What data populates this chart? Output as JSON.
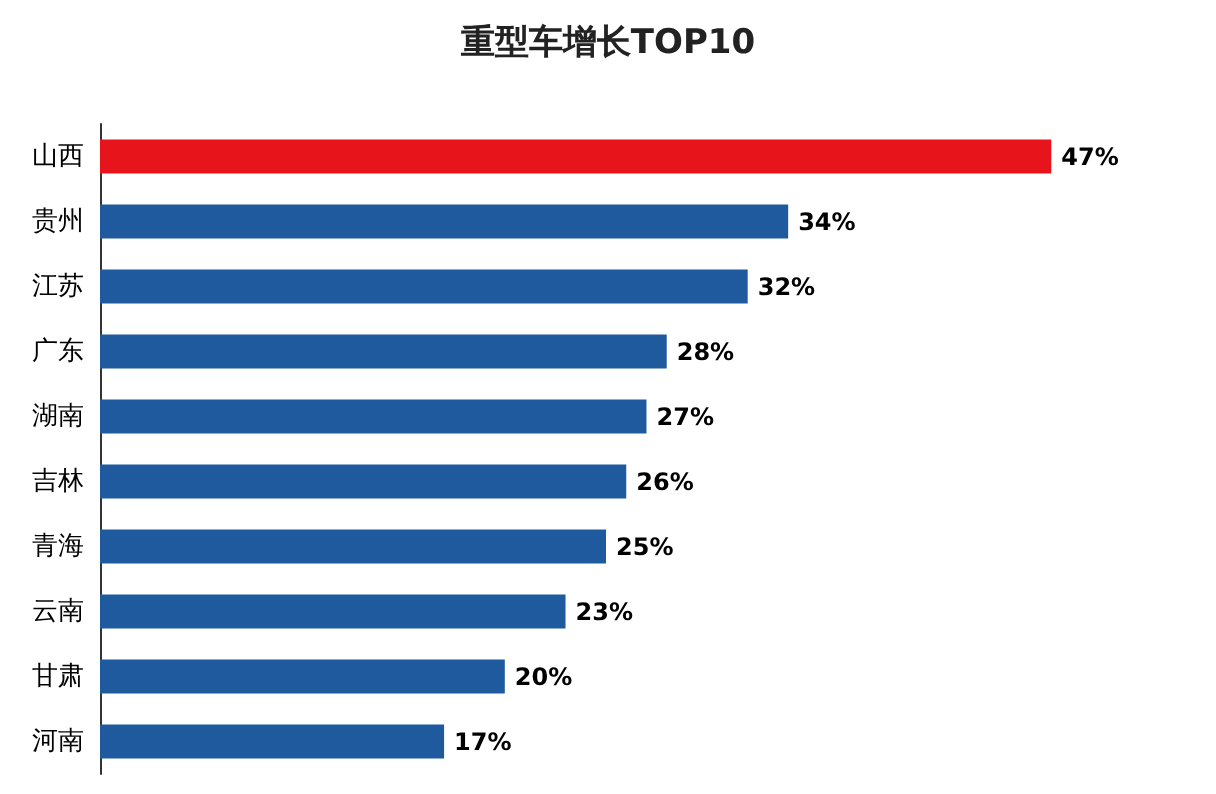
{
  "chart_data": {
    "type": "bar",
    "orientation": "horizontal",
    "title": "重型车增长TOP10",
    "categories": [
      "山西",
      "贵州",
      "江苏",
      "广东",
      "湖南",
      "吉林",
      "青海",
      "云南",
      "甘肃",
      "河南"
    ],
    "values": [
      47,
      34,
      32,
      28,
      27,
      26,
      25,
      23,
      20,
      17
    ],
    "value_labels": [
      "47%",
      "34%",
      "32%",
      "28%",
      "27%",
      "26%",
      "25%",
      "23%",
      "20%",
      "17%"
    ],
    "colors": [
      "#e8141b",
      "#1f5a9e",
      "#1f5a9e",
      "#1f5a9e",
      "#1f5a9e",
      "#1f5a9e",
      "#1f5a9e",
      "#1f5a9e",
      "#1f5a9e",
      "#1f5a9e"
    ]
  }
}
